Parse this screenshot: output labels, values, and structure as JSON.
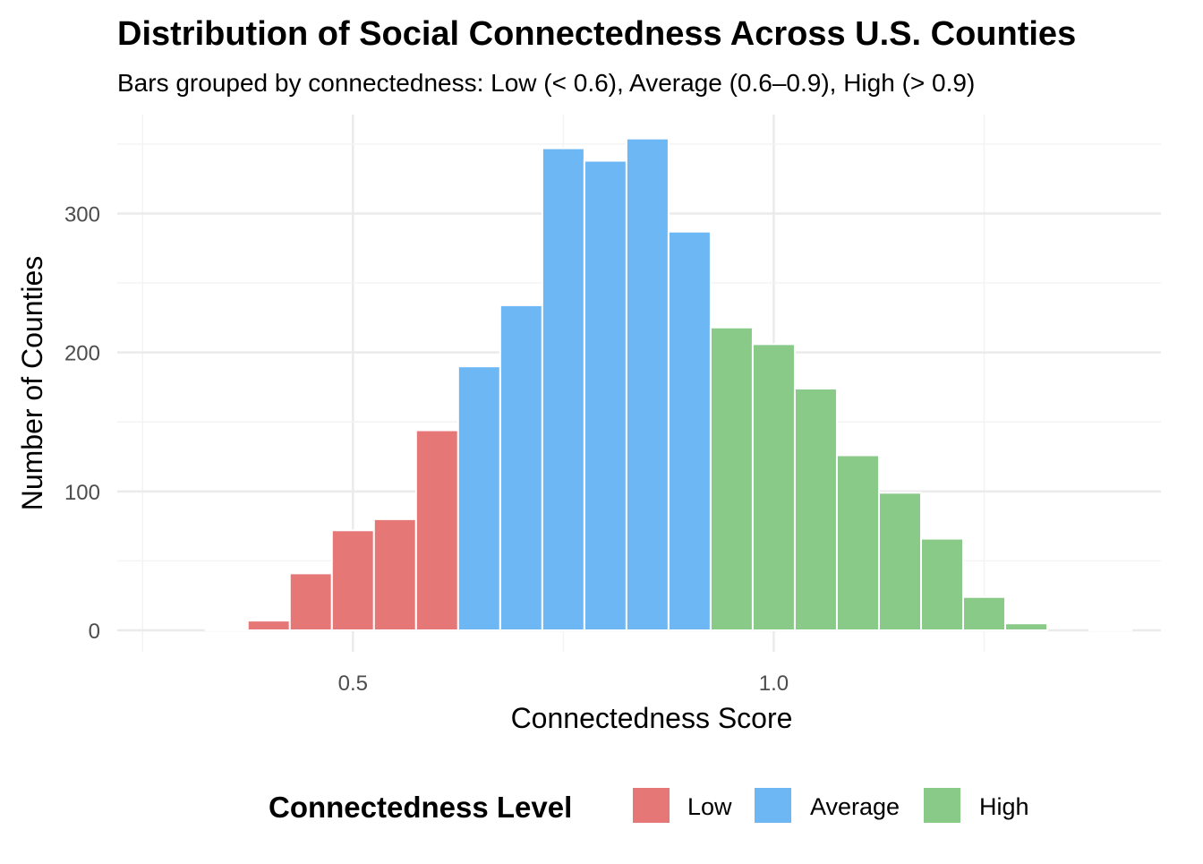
{
  "chart_data": {
    "type": "bar",
    "title": "Distribution of Social Connectedness Across U.S. Counties",
    "subtitle": "Bars grouped by connectedness: Low (< 0.6), Average (0.6–0.9), High (> 0.9)",
    "xlabel": "Connectedness Score",
    "ylabel": "Number of Counties",
    "xlim": [
      0.22,
      1.46
    ],
    "ylim": [
      0,
      352
    ],
    "x_ticks": [
      0.5,
      1.0
    ],
    "x_tick_labels": [
      "0.5",
      "1.0"
    ],
    "y_ticks": [
      0,
      100,
      200,
      300
    ],
    "y_tick_labels": [
      "0",
      "100",
      "200",
      "300"
    ],
    "grid": true,
    "legend": {
      "title": "Connectedness Level",
      "placement": "bottom",
      "entries": [
        {
          "label": "Low",
          "color": "#e57777"
        },
        {
          "label": "Average",
          "color": "#6db8f4"
        },
        {
          "label": "High",
          "color": "#89ca89"
        }
      ]
    },
    "series": [
      {
        "name": "Low",
        "color": "#e57777",
        "bins": [
          {
            "x0": 0.325,
            "x1": 0.375,
            "count": 1
          },
          {
            "x0": 0.375,
            "x1": 0.425,
            "count": 7
          },
          {
            "x0": 0.425,
            "x1": 0.475,
            "count": 41
          },
          {
            "x0": 0.475,
            "x1": 0.525,
            "count": 72
          },
          {
            "x0": 0.525,
            "x1": 0.575,
            "count": 80
          },
          {
            "x0": 0.575,
            "x1": 0.625,
            "count": 144
          }
        ]
      },
      {
        "name": "Average",
        "color": "#6db8f4",
        "bins": [
          {
            "x0": 0.625,
            "x1": 0.675,
            "count": 190
          },
          {
            "x0": 0.675,
            "x1": 0.725,
            "count": 234
          },
          {
            "x0": 0.725,
            "x1": 0.775,
            "count": 347
          },
          {
            "x0": 0.775,
            "x1": 0.825,
            "count": 338
          },
          {
            "x0": 0.825,
            "x1": 0.875,
            "count": 354
          },
          {
            "x0": 0.875,
            "x1": 0.925,
            "count": 287
          }
        ]
      },
      {
        "name": "High",
        "color": "#89ca89",
        "bins": [
          {
            "x0": 0.925,
            "x1": 0.975,
            "count": 218
          },
          {
            "x0": 0.975,
            "x1": 1.025,
            "count": 206
          },
          {
            "x0": 1.025,
            "x1": 1.075,
            "count": 174
          },
          {
            "x0": 1.075,
            "x1": 1.125,
            "count": 126
          },
          {
            "x0": 1.125,
            "x1": 1.175,
            "count": 99
          },
          {
            "x0": 1.175,
            "x1": 1.225,
            "count": 66
          },
          {
            "x0": 1.225,
            "x1": 1.275,
            "count": 24
          },
          {
            "x0": 1.275,
            "x1": 1.325,
            "count": 5
          },
          {
            "x0": 1.325,
            "x1": 1.375,
            "count": 0
          },
          {
            "x0": 1.375,
            "x1": 1.425,
            "count": 1
          }
        ]
      }
    ]
  }
}
